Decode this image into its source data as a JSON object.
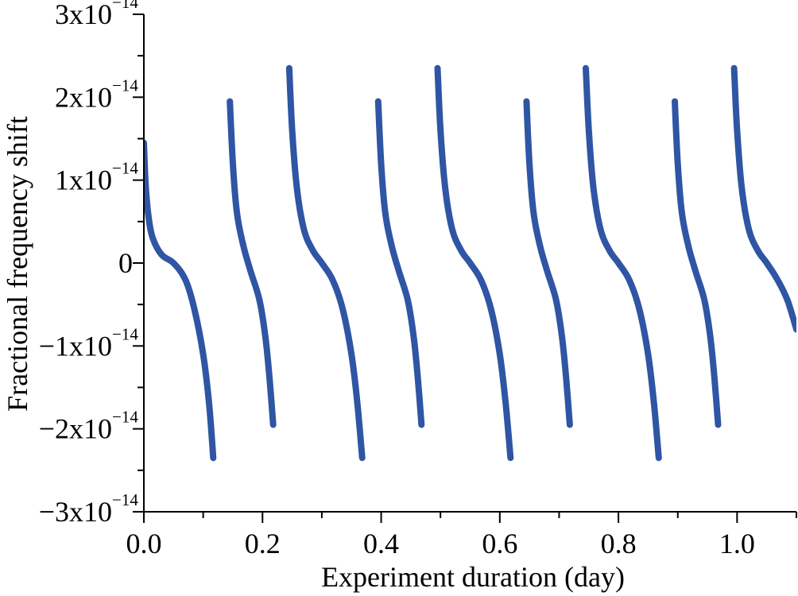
{
  "chart_data": {
    "type": "line",
    "title": "",
    "xlabel": "Experiment duration (day)",
    "ylabel": "Fractional frequency shift",
    "xlim": [
      0,
      1.1
    ],
    "ylim": [
      -3e-14,
      3e-14
    ],
    "grid": false,
    "legend": "none",
    "x_ticks": [
      {
        "value": 0.0,
        "label": "0.0"
      },
      {
        "value": 0.2,
        "label": "0.2"
      },
      {
        "value": 0.4,
        "label": "0.4"
      },
      {
        "value": 0.6,
        "label": "0.6"
      },
      {
        "value": 0.8,
        "label": "0.8"
      },
      {
        "value": 1.0,
        "label": "1.0"
      }
    ],
    "y_ticks": [
      {
        "value": 3e-14,
        "mantissa": "3x10",
        "exp": "−14"
      },
      {
        "value": 2e-14,
        "mantissa": "2x10",
        "exp": "−14"
      },
      {
        "value": 1e-14,
        "mantissa": "1x10",
        "exp": "−14"
      },
      {
        "value": 0,
        "mantissa": "0",
        "exp": ""
      },
      {
        "value": -1e-14,
        "mantissa": "−1x10",
        "exp": "−14"
      },
      {
        "value": -2e-14,
        "mantissa": "−2x10",
        "exp": "−14"
      },
      {
        "value": -3e-14,
        "mantissa": "−3x10",
        "exp": "−14"
      }
    ],
    "series": [
      {
        "color": "#2f55a4",
        "segments": [
          {
            "x": [
              0.0,
              0.003,
              0.008,
              0.015,
              0.03,
              0.05,
              0.07,
              0.085,
              0.1,
              0.11,
              0.117
            ],
            "y": [
              1.45e-14,
              9.5e-15,
              5.5e-15,
              3e-15,
              1e-15,
              0.0,
              -2e-15,
              -5.5e-15,
              -1.1e-14,
              -1.7e-14,
              -2.35e-14
            ]
          },
          {
            "x": [
              0.145,
              0.15,
              0.157,
              0.168,
              0.18,
              0.195,
              0.205,
              0.212,
              0.218
            ],
            "y": [
              1.95e-14,
              1.2e-14,
              6e-15,
              2e-15,
              -1e-15,
              -4.5e-15,
              -9e-15,
              -1.4e-14,
              -1.95e-14
            ]
          },
          {
            "x": [
              0.245,
              0.25,
              0.258,
              0.27,
              0.285,
              0.3,
              0.318,
              0.335,
              0.35,
              0.36,
              0.368
            ],
            "y": [
              2.35e-14,
              1.6e-14,
              9e-15,
              4e-15,
              1.5e-15,
              0.0,
              -2e-15,
              -5.5e-15,
              -1.1e-14,
              -1.7e-14,
              -2.35e-14
            ]
          },
          {
            "x": [
              0.395,
              0.4,
              0.407,
              0.418,
              0.43,
              0.445,
              0.455,
              0.462,
              0.468
            ],
            "y": [
              1.95e-14,
              1.2e-14,
              6e-15,
              2e-15,
              -1e-15,
              -4.5e-15,
              -9e-15,
              -1.4e-14,
              -1.95e-14
            ]
          },
          {
            "x": [
              0.495,
              0.5,
              0.508,
              0.52,
              0.535,
              0.55,
              0.568,
              0.585,
              0.6,
              0.61,
              0.618
            ],
            "y": [
              2.35e-14,
              1.6e-14,
              9e-15,
              4e-15,
              1.5e-15,
              0.0,
              -2e-15,
              -5.5e-15,
              -1.1e-14,
              -1.7e-14,
              -2.35e-14
            ]
          },
          {
            "x": [
              0.645,
              0.65,
              0.657,
              0.668,
              0.68,
              0.695,
              0.705,
              0.712,
              0.718
            ],
            "y": [
              1.95e-14,
              1.2e-14,
              6e-15,
              2e-15,
              -1e-15,
              -4.5e-15,
              -9e-15,
              -1.4e-14,
              -1.95e-14
            ]
          },
          {
            "x": [
              0.745,
              0.75,
              0.758,
              0.77,
              0.785,
              0.8,
              0.818,
              0.835,
              0.85,
              0.86,
              0.868
            ],
            "y": [
              2.35e-14,
              1.6e-14,
              9e-15,
              4e-15,
              1.5e-15,
              0.0,
              -2e-15,
              -5.5e-15,
              -1.1e-14,
              -1.7e-14,
              -2.35e-14
            ]
          },
          {
            "x": [
              0.895,
              0.9,
              0.907,
              0.918,
              0.93,
              0.945,
              0.955,
              0.962,
              0.968
            ],
            "y": [
              1.95e-14,
              1.2e-14,
              6e-15,
              2e-15,
              -1e-15,
              -4.5e-15,
              -9e-15,
              -1.4e-14,
              -1.95e-14
            ]
          },
          {
            "x": [
              0.995,
              1.0,
              1.008,
              1.02,
              1.035,
              1.05,
              1.068,
              1.085,
              1.1
            ],
            "y": [
              2.35e-14,
              1.6e-14,
              9e-15,
              4e-15,
              1.5e-15,
              0.0,
              -2e-15,
              -4.5e-15,
              -8e-15
            ]
          }
        ]
      }
    ]
  }
}
